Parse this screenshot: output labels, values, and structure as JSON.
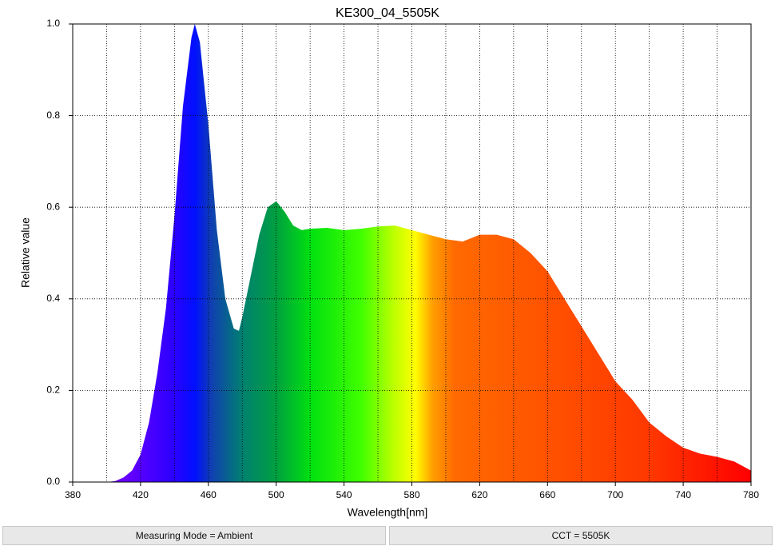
{
  "chart_data": {
    "type": "area",
    "title": "KE300_04_5505K",
    "x_label": "Wavelength[nm]",
    "y_label": "Relative value",
    "x": [
      380,
      390,
      400,
      405,
      410,
      415,
      420,
      425,
      430,
      435,
      440,
      445,
      450,
      452,
      455,
      460,
      465,
      470,
      475,
      478,
      480,
      485,
      490,
      495,
      500,
      505,
      510,
      515,
      520,
      530,
      540,
      550,
      560,
      570,
      580,
      590,
      600,
      610,
      620,
      630,
      640,
      650,
      660,
      670,
      680,
      690,
      700,
      710,
      720,
      730,
      740,
      750,
      760,
      770,
      780
    ],
    "y": [
      0,
      0,
      0,
      0.002,
      0.01,
      0.025,
      0.06,
      0.13,
      0.24,
      0.38,
      0.58,
      0.82,
      0.97,
      1.0,
      0.96,
      0.78,
      0.55,
      0.4,
      0.335,
      0.33,
      0.36,
      0.45,
      0.54,
      0.6,
      0.613,
      0.59,
      0.56,
      0.55,
      0.553,
      0.555,
      0.55,
      0.553,
      0.558,
      0.56,
      0.55,
      0.54,
      0.53,
      0.525,
      0.54,
      0.54,
      0.53,
      0.5,
      0.46,
      0.4,
      0.34,
      0.28,
      0.22,
      0.18,
      0.13,
      0.1,
      0.075,
      0.062,
      0.055,
      0.045,
      0.025
    ],
    "fill_gradient": [
      {
        "x": 410,
        "color": "#6a00ff"
      },
      {
        "x": 440,
        "color": "#2a00ff"
      },
      {
        "x": 452,
        "color": "#0010ff"
      },
      {
        "x": 462,
        "color": "#1040b0"
      },
      {
        "x": 480,
        "color": "#008070"
      },
      {
        "x": 500,
        "color": "#00a040"
      },
      {
        "x": 520,
        "color": "#00e010"
      },
      {
        "x": 550,
        "color": "#40ff00"
      },
      {
        "x": 570,
        "color": "#c0ff00"
      },
      {
        "x": 582,
        "color": "#ffff00"
      },
      {
        "x": 592,
        "color": "#ffa000"
      },
      {
        "x": 605,
        "color": "#ff6a00"
      },
      {
        "x": 660,
        "color": "#ff5200"
      },
      {
        "x": 720,
        "color": "#ff3800"
      },
      {
        "x": 780,
        "color": "#ff0000"
      }
    ],
    "xlim": [
      380,
      780
    ],
    "ylim": [
      0,
      1
    ],
    "xticks": [
      380,
      420,
      460,
      500,
      540,
      580,
      620,
      660,
      700,
      740,
      780
    ],
    "x_gridlines": [
      400,
      420,
      440,
      460,
      480,
      500,
      520,
      540,
      560,
      580,
      600,
      620,
      640,
      660,
      680,
      700,
      720,
      740,
      760
    ],
    "yticks": [
      {
        "value": 0,
        "label": "0.0"
      },
      0.2,
      0.4,
      0.6,
      0.8,
      {
        "value": 1,
        "label": "1.0"
      }
    ],
    "grid": true
  },
  "status_bar": [
    "Measuring Mode = Ambient",
    "CCT = 5505K"
  ]
}
